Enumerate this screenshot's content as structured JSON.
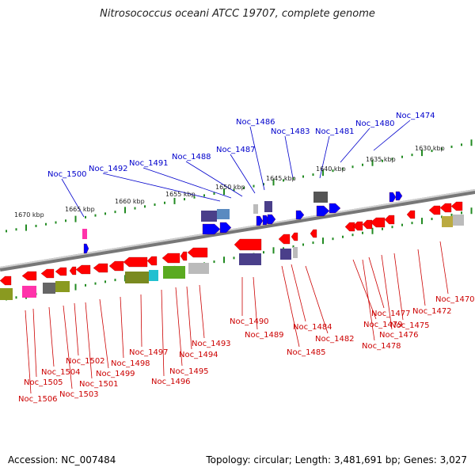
{
  "title": "Nitrosococcus oceani ATCC 19707, complete genome",
  "accession": "Accession: NC_007484",
  "topology_info": "Topology: circular; Length: 3,481,691 bp; Genes: 3,027",
  "colors": {
    "forward_label": "#0000cc",
    "reverse_label": "#cc0000",
    "forward_gene": "#0000ff",
    "reverse_gene": "#ff0000",
    "genome_arc": "#888888",
    "tick": "#228b22"
  },
  "scale_labels": [
    "1630 kbp",
    "1635 kbp",
    "1640 kbp",
    "1645 kbp",
    "1650 kbp",
    "1655 kbp",
    "1660 kbp",
    "1665 kbp",
    "1670 kbp"
  ],
  "forward_labels": [
    "Noc_1474",
    "Noc_1480",
    "Noc_1481",
    "Noc_1483",
    "Noc_1486",
    "Noc_1487",
    "Noc_1488",
    "Noc_1491",
    "Noc_1492",
    "Noc_1500"
  ],
  "reverse_labels": [
    "Noc_1470",
    "Noc_1472",
    "Noc_1475",
    "Noc_1476",
    "Noc_1477",
    "Noc_1478",
    "Noc_1479",
    "Noc_1482",
    "Noc_1484",
    "Noc_1485",
    "Noc_1489",
    "Noc_1490",
    "Noc_1493",
    "Noc_1494",
    "Noc_1495",
    "Noc_1496",
    "Noc_1497",
    "Noc_1498",
    "Noc_1499",
    "Noc_1501",
    "Noc_1502",
    "Noc_1503",
    "Noc_1504",
    "Noc_1505",
    "Noc_1506"
  ]
}
